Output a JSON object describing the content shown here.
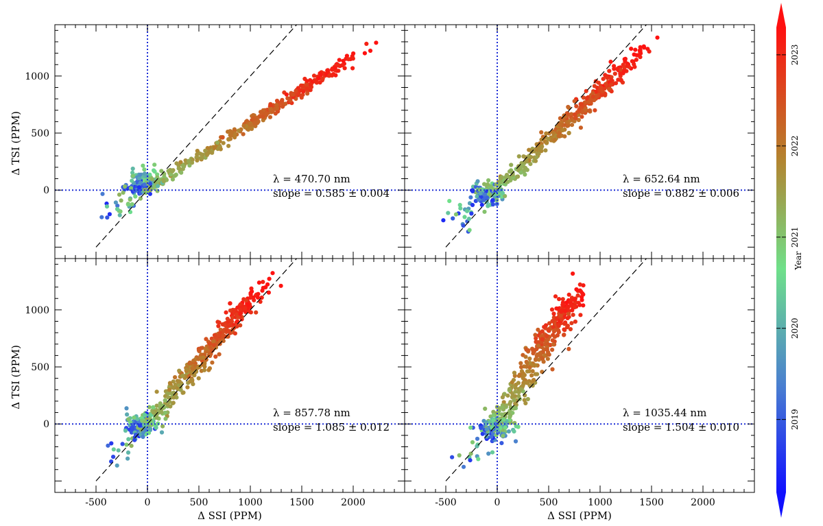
{
  "chart_data": {
    "type": "scatter",
    "layout": "2x2 grid, shared axes",
    "xlabel": "Δ SSI (PPM)",
    "ylabel": "Δ TSI (PPM)",
    "xlim": [
      -900,
      2500
    ],
    "ylim": [
      -600,
      1450
    ],
    "xticks": [
      -500,
      0,
      500,
      1000,
      1500,
      2000
    ],
    "yticks": [
      0,
      500,
      1000
    ],
    "reference_lines": {
      "vertical_x": 0,
      "horizontal_y": 0,
      "style": "dotted",
      "color": "#1a2bd6",
      "diagonal": "y = x (dashed black)"
    },
    "colorbar": {
      "label": "Year",
      "ticks": [
        "2019",
        "2020",
        "2021",
        "2022",
        "2023"
      ],
      "range": [
        2018.2,
        2023.3
      ],
      "colormap": [
        "#1010ff",
        "#4a7fd0",
        "#6fe08a",
        "#b4822e",
        "#ff1010"
      ],
      "extend": "both"
    },
    "panels": [
      {
        "wavelength_label": "λ = 470.70 nm",
        "slope_label": "slope = 0.585 ± 0.004",
        "slope": 0.585,
        "slope_err": 0.004,
        "wavelength_nm": 470.7,
        "x_range": [
          -500,
          1850
        ],
        "y_range": [
          -300,
          1250
        ],
        "early_offset": [
          -50,
          60
        ]
      },
      {
        "wavelength_label": "λ = 652.64 nm",
        "slope_label": "slope = 0.882 ± 0.006",
        "slope": 0.882,
        "slope_err": 0.006,
        "wavelength_nm": 652.64,
        "x_range": [
          -400,
          1330
        ],
        "y_range": [
          -300,
          1250
        ],
        "early_offset": [
          -120,
          -40
        ]
      },
      {
        "wavelength_label": "λ = 857.78 nm",
        "slope_label": "slope = 1.085 ± 0.012",
        "slope": 1.085,
        "slope_err": 0.012,
        "wavelength_nm": 857.78,
        "x_range": [
          -280,
          1180
        ],
        "y_range": [
          -300,
          1250
        ],
        "early_offset": [
          -60,
          -20
        ]
      },
      {
        "wavelength_label": "λ = 1035.44 nm",
        "slope_label": "slope = 1.504 ± 0.010",
        "slope": 1.504,
        "slope_err": 0.01,
        "wavelength_nm": 1035.44,
        "x_range": [
          -250,
          800
        ],
        "y_range": [
          -300,
          1250
        ],
        "early_offset": [
          -30,
          -40
        ]
      }
    ]
  }
}
